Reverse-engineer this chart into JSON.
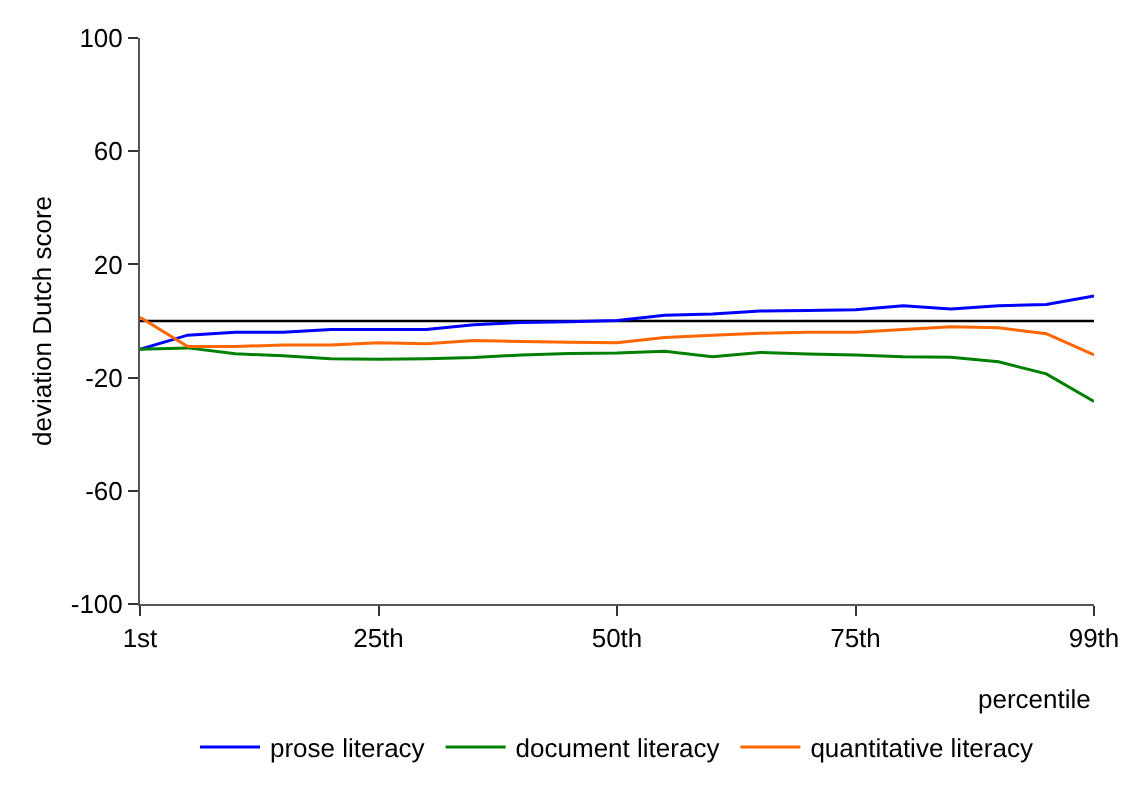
{
  "chart_data": {
    "type": "line",
    "ylabel": "deviation Dutch score",
    "xlabel": "percentile",
    "categories": [
      "1st",
      null,
      null,
      null,
      null,
      "25th",
      null,
      null,
      null,
      null,
      "50th",
      null,
      null,
      null,
      null,
      "75th",
      null,
      null,
      null,
      null,
      "99th"
    ],
    "series": [
      {
        "name": "prose literacy",
        "color": "#0000ff",
        "values": [
          -10,
          -5,
          -4,
          -4,
          -3,
          -3,
          -3,
          -1.3,
          -0.5,
          -0.3,
          0.2,
          2,
          2.5,
          3.5,
          3.7,
          4,
          5.4,
          4.2,
          5.4,
          5.8,
          8.8
        ]
      },
      {
        "name": "document literacy",
        "color": "#008000",
        "values": [
          -10,
          -9.5,
          -11.6,
          -12.3,
          -13.3,
          -13.5,
          -13.3,
          -12.9,
          -12,
          -11.5,
          -11.3,
          -10.7,
          -12.6,
          -11.1,
          -11.7,
          -12,
          -12.6,
          -12.8,
          -14.4,
          -18.7,
          -28.4
        ]
      },
      {
        "name": "quantitative literacy",
        "color": "#ff6600",
        "values": [
          1.3,
          -9,
          -9,
          -8.5,
          -8.5,
          -7.7,
          -8,
          -6.9,
          -7.2,
          -7.5,
          -7.7,
          -5.8,
          -5,
          -4.3,
          -4,
          -4,
          -3,
          -2,
          -2.4,
          -4.5,
          -12
        ]
      }
    ],
    "ylim": [
      -100,
      100
    ],
    "yticks": [
      -100,
      -60,
      -20,
      20,
      60,
      100
    ],
    "ref_lines": [
      {
        "axis": "y",
        "value": 0,
        "color": "#000000"
      }
    ],
    "grid": false,
    "legend": "bottom",
    "marker": "none",
    "line_style": "solid"
  }
}
